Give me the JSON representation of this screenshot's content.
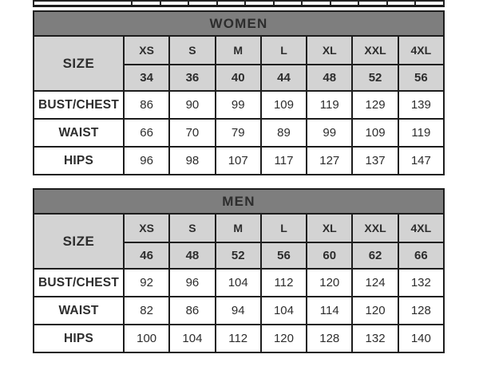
{
  "colors": {
    "table_header_bg": "#7e7e7e",
    "table_header_text": "#ffffff",
    "size_row_bg": "#d3d3d3",
    "body_row_bg": "#ffffff",
    "border": "#1d1d1d",
    "text": "#2d2d2d"
  },
  "women_table": {
    "title": "WOMEN",
    "size_label": "SIZE",
    "size_letters": [
      "XS",
      "S",
      "M",
      "L",
      "XL",
      "XXL",
      "4XL"
    ],
    "size_numbers": [
      "34",
      "36",
      "40",
      "44",
      "48",
      "52",
      "56"
    ],
    "measurements": [
      {
        "label": "BUST/CHEST",
        "values": [
          "86",
          "90",
          "99",
          "109",
          "119",
          "129",
          "139"
        ]
      },
      {
        "label": "WAIST",
        "values": [
          "66",
          "70",
          "79",
          "89",
          "99",
          "109",
          "119"
        ]
      },
      {
        "label": "HIPS",
        "values": [
          "96",
          "98",
          "107",
          "117",
          "127",
          "137",
          "147"
        ]
      }
    ]
  },
  "men_table": {
    "title": "MEN",
    "size_label": "SIZE",
    "size_letters": [
      "XS",
      "S",
      "M",
      "L",
      "XL",
      "XXL",
      "4XL"
    ],
    "size_numbers": [
      "46",
      "48",
      "52",
      "56",
      "60",
      "62",
      "66"
    ],
    "measurements": [
      {
        "label": "BUST/CHEST",
        "values": [
          "92",
          "96",
          "104",
          "112",
          "120",
          "124",
          "132"
        ]
      },
      {
        "label": "WAIST",
        "values": [
          "82",
          "86",
          "94",
          "104",
          "114",
          "120",
          "128"
        ]
      },
      {
        "label": "HIPS",
        "values": [
          "100",
          "104",
          "112",
          "120",
          "128",
          "132",
          "140"
        ]
      }
    ]
  },
  "chart_data": [
    {
      "type": "table",
      "title": "WOMEN",
      "columns": [
        "XS",
        "S",
        "M",
        "L",
        "XL",
        "XXL",
        "4XL"
      ],
      "rows": [
        {
          "label": "SIZE",
          "values": [
            34,
            36,
            40,
            44,
            48,
            52,
            56
          ]
        },
        {
          "label": "BUST/CHEST",
          "values": [
            86,
            90,
            99,
            109,
            119,
            129,
            139
          ]
        },
        {
          "label": "WAIST",
          "values": [
            66,
            70,
            79,
            89,
            99,
            109,
            119
          ]
        },
        {
          "label": "HIPS",
          "values": [
            96,
            98,
            107,
            117,
            127,
            137,
            147
          ]
        }
      ]
    },
    {
      "type": "table",
      "title": "MEN",
      "columns": [
        "XS",
        "S",
        "M",
        "L",
        "XL",
        "XXL",
        "4XL"
      ],
      "rows": [
        {
          "label": "SIZE",
          "values": [
            46,
            48,
            52,
            56,
            60,
            62,
            66
          ]
        },
        {
          "label": "BUST/CHEST",
          "values": [
            92,
            96,
            104,
            112,
            120,
            124,
            132
          ]
        },
        {
          "label": "WAIST",
          "values": [
            82,
            86,
            94,
            104,
            114,
            120,
            128
          ]
        },
        {
          "label": "HIPS",
          "values": [
            100,
            104,
            112,
            120,
            128,
            132,
            140
          ]
        }
      ]
    }
  ]
}
